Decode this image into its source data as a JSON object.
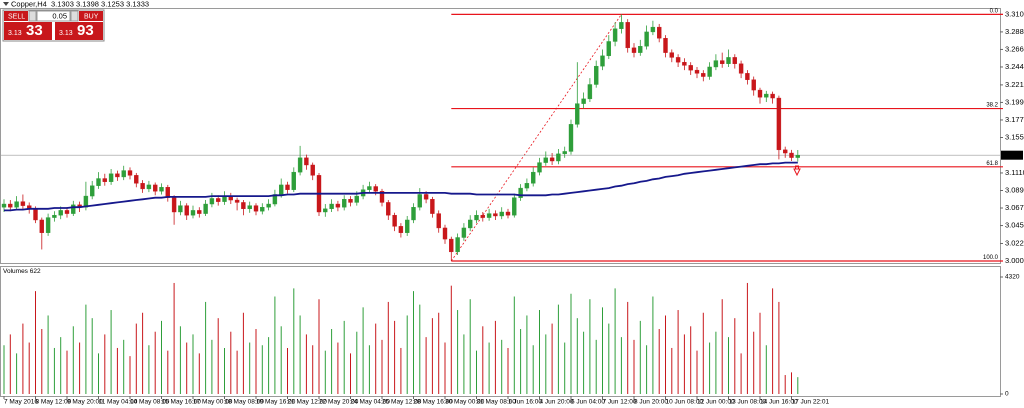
{
  "header": {
    "symbol": "Copper,H4",
    "open": 3.1303,
    "high": 3.1398,
    "low": 3.1253,
    "close": 3.1333
  },
  "trade_panel": {
    "sell_label": "SELL",
    "lot": "0.05",
    "buy_label": "BUY",
    "sell_prefix": "3.13",
    "sell_big": "33",
    "buy_prefix": "3.13",
    "buy_big": "93"
  },
  "chart_data": [
    {
      "type": "candlestick",
      "up_color": "#2e9e3a",
      "down_color": "#c8171b",
      "categories": [
        "7 May 2016",
        null,
        null,
        null,
        null,
        "8 May 12:00",
        null,
        null,
        null,
        null,
        "9 May 20:00",
        null,
        null,
        null,
        null,
        "11 May 04:00",
        null,
        null,
        null,
        null,
        "14 May 08:00",
        null,
        null,
        null,
        null,
        "15 May 16:00",
        null,
        null,
        null,
        null,
        "17 May 00:00",
        null,
        null,
        null,
        null,
        "18 May 08:00",
        null,
        null,
        null,
        null,
        "19 May 16:00",
        null,
        null,
        null,
        null,
        "21 May 12:00",
        null,
        null,
        null,
        null,
        "22 May 20:00",
        null,
        null,
        null,
        null,
        "24 May 04:00",
        null,
        null,
        null,
        null,
        "25 May 12:00",
        null,
        null,
        null,
        null,
        "28 May 16:00",
        null,
        null,
        null,
        null,
        "30 May 00:00",
        null,
        null,
        null,
        null,
        "31 May 08:00",
        null,
        null,
        null,
        null,
        "1 Jun 16:00",
        null,
        null,
        null,
        null,
        "4 Jun 20:00",
        null,
        null,
        null,
        null,
        "6 Jun 04:00",
        null,
        null,
        null,
        null,
        "7 Jun 12:00",
        null,
        null,
        null,
        null,
        "8 Jun 20:00",
        null,
        null,
        null,
        null,
        "10 Jun 08:00",
        null,
        null,
        null,
        null,
        "12 Jun 00:00",
        null,
        null,
        null,
        null,
        "13 Jun 08:00",
        null,
        null,
        null,
        null,
        "14 Jun 16:00",
        null,
        null,
        null,
        null,
        "17 Jun 22:01",
        null
      ],
      "open": [
        3.068,
        3.072,
        3.068,
        3.075,
        3.07,
        3.066,
        3.052,
        3.036,
        3.055,
        3.058,
        3.064,
        3.06,
        3.071,
        3.068,
        3.082,
        3.095,
        3.104,
        3.1,
        3.11,
        3.106,
        3.114,
        3.108,
        3.098,
        3.091,
        3.096,
        3.088,
        3.093,
        3.08,
        3.062,
        3.07,
        3.058,
        3.064,
        3.06,
        3.072,
        3.079,
        3.075,
        3.082,
        3.077,
        3.074,
        3.066,
        3.07,
        3.063,
        3.068,
        3.072,
        3.084,
        3.096,
        3.09,
        3.112,
        3.13,
        3.121,
        3.108,
        3.062,
        3.066,
        3.072,
        3.068,
        3.078,
        3.074,
        3.082,
        3.09,
        3.094,
        3.088,
        3.074,
        3.058,
        3.044,
        3.036,
        3.052,
        3.068,
        3.084,
        3.078,
        3.06,
        3.042,
        3.028,
        3.012,
        3.03,
        3.042,
        3.052,
        3.058,
        3.055,
        3.06,
        3.057,
        3.062,
        3.058,
        3.08,
        3.092,
        3.098,
        3.112,
        3.124,
        3.13,
        3.126,
        3.135,
        3.138,
        3.172,
        3.198,
        3.204,
        3.222,
        3.245,
        3.258,
        3.276,
        3.292,
        3.3,
        3.268,
        3.262,
        3.27,
        3.288,
        3.294,
        3.28,
        3.262,
        3.256,
        3.25,
        3.246,
        3.24,
        3.236,
        3.232,
        3.244,
        3.252,
        3.248,
        3.256,
        3.248,
        3.236,
        3.228,
        3.215,
        3.206,
        3.21,
        3.205,
        3.14,
        3.136,
        3.1303
      ],
      "high": [
        3.078,
        3.077,
        3.082,
        3.084,
        3.074,
        3.069,
        3.055,
        3.06,
        3.063,
        3.069,
        3.068,
        3.076,
        3.075,
        3.1,
        3.101,
        3.112,
        3.11,
        3.116,
        3.114,
        3.12,
        3.118,
        3.111,
        3.102,
        3.101,
        3.099,
        3.098,
        3.096,
        3.083,
        3.076,
        3.073,
        3.07,
        3.068,
        3.077,
        3.086,
        3.083,
        3.088,
        3.086,
        3.08,
        3.077,
        3.075,
        3.073,
        3.073,
        3.078,
        3.09,
        3.104,
        3.1,
        3.118,
        3.145,
        3.134,
        3.124,
        3.111,
        3.072,
        3.078,
        3.076,
        3.083,
        3.082,
        3.088,
        3.096,
        3.1,
        3.097,
        3.091,
        3.077,
        3.061,
        3.048,
        3.057,
        3.073,
        3.092,
        3.088,
        3.081,
        3.064,
        3.046,
        3.031,
        3.035,
        3.048,
        3.058,
        3.064,
        3.062,
        3.066,
        3.064,
        3.068,
        3.066,
        3.085,
        3.097,
        3.104,
        3.118,
        3.13,
        3.138,
        3.136,
        3.141,
        3.144,
        3.178,
        3.25,
        3.212,
        3.23,
        3.252,
        3.266,
        3.284,
        3.3,
        3.31,
        3.304,
        3.274,
        3.278,
        3.296,
        3.302,
        3.298,
        3.284,
        3.266,
        3.26,
        3.255,
        3.25,
        3.244,
        3.24,
        3.25,
        3.26,
        3.262,
        3.266,
        3.26,
        3.252,
        3.24,
        3.232,
        3.218,
        3.214,
        3.213,
        3.208,
        3.144,
        3.14,
        3.1398
      ],
      "low": [
        3.062,
        3.063,
        3.064,
        3.066,
        3.06,
        3.048,
        3.015,
        3.032,
        3.05,
        3.053,
        3.055,
        3.057,
        3.062,
        3.064,
        3.078,
        3.091,
        3.095,
        3.096,
        3.101,
        3.102,
        3.103,
        3.093,
        3.086,
        3.087,
        3.083,
        3.084,
        3.075,
        3.046,
        3.058,
        3.052,
        3.054,
        3.055,
        3.057,
        3.068,
        3.07,
        3.071,
        3.072,
        3.064,
        3.058,
        3.061,
        3.058,
        3.059,
        3.064,
        3.069,
        3.08,
        3.085,
        3.087,
        3.108,
        3.115,
        3.102,
        3.057,
        3.056,
        3.062,
        3.063,
        3.064,
        3.069,
        3.07,
        3.078,
        3.086,
        3.083,
        3.069,
        3.052,
        3.038,
        3.03,
        3.032,
        3.048,
        3.064,
        3.073,
        3.055,
        3.036,
        3.022,
        3.0005,
        3.008,
        3.026,
        3.038,
        3.048,
        3.05,
        3.051,
        3.052,
        3.053,
        3.054,
        3.055,
        3.076,
        3.088,
        3.094,
        3.108,
        3.12,
        3.121,
        3.122,
        3.13,
        3.134,
        3.168,
        3.192,
        3.2,
        3.218,
        3.24,
        3.254,
        3.27,
        3.286,
        3.262,
        3.256,
        3.258,
        3.266,
        3.284,
        3.275,
        3.256,
        3.25,
        3.244,
        3.24,
        3.234,
        3.23,
        3.226,
        3.228,
        3.24,
        3.243,
        3.244,
        3.242,
        3.23,
        3.222,
        3.208,
        3.198,
        3.2,
        3.198,
        3.128,
        3.13,
        3.126,
        3.1253
      ],
      "close": [
        3.072,
        3.068,
        3.075,
        3.07,
        3.066,
        3.052,
        3.036,
        3.055,
        3.058,
        3.064,
        3.06,
        3.071,
        3.068,
        3.082,
        3.095,
        3.104,
        3.1,
        3.11,
        3.106,
        3.114,
        3.108,
        3.098,
        3.091,
        3.096,
        3.088,
        3.093,
        3.08,
        3.062,
        3.07,
        3.058,
        3.064,
        3.06,
        3.072,
        3.079,
        3.075,
        3.082,
        3.077,
        3.074,
        3.066,
        3.07,
        3.063,
        3.068,
        3.072,
        3.084,
        3.096,
        3.09,
        3.112,
        3.13,
        3.121,
        3.108,
        3.062,
        3.066,
        3.072,
        3.068,
        3.078,
        3.074,
        3.082,
        3.09,
        3.094,
        3.088,
        3.074,
        3.058,
        3.044,
        3.036,
        3.052,
        3.068,
        3.084,
        3.078,
        3.06,
        3.042,
        3.028,
        3.012,
        3.03,
        3.042,
        3.052,
        3.058,
        3.055,
        3.06,
        3.057,
        3.062,
        3.058,
        3.08,
        3.092,
        3.098,
        3.112,
        3.124,
        3.13,
        3.126,
        3.135,
        3.138,
        3.172,
        3.198,
        3.204,
        3.222,
        3.245,
        3.258,
        3.276,
        3.292,
        3.3,
        3.268,
        3.262,
        3.27,
        3.288,
        3.294,
        3.28,
        3.262,
        3.256,
        3.25,
        3.246,
        3.24,
        3.236,
        3.232,
        3.244,
        3.252,
        3.248,
        3.256,
        3.248,
        3.236,
        3.228,
        3.215,
        3.206,
        3.21,
        3.205,
        3.14,
        3.136,
        3.1303,
        3.1333
      ],
      "ma": {
        "color": "#16188c",
        "values": [
          3.064,
          3.064,
          3.065,
          3.065,
          3.066,
          3.066,
          3.066,
          3.066,
          3.067,
          3.067,
          3.067,
          3.068,
          3.068,
          3.069,
          3.07,
          3.071,
          3.072,
          3.073,
          3.074,
          3.075,
          3.076,
          3.077,
          3.078,
          3.079,
          3.08,
          3.08,
          3.081,
          3.081,
          3.081,
          3.081,
          3.081,
          3.081,
          3.081,
          3.082,
          3.082,
          3.082,
          3.082,
          3.082,
          3.082,
          3.082,
          3.082,
          3.082,
          3.082,
          3.083,
          3.083,
          3.084,
          3.084,
          3.085,
          3.085,
          3.085,
          3.085,
          3.085,
          3.085,
          3.085,
          3.085,
          3.085,
          3.085,
          3.086,
          3.086,
          3.086,
          3.086,
          3.086,
          3.086,
          3.086,
          3.086,
          3.086,
          3.086,
          3.086,
          3.086,
          3.086,
          3.086,
          3.085,
          3.085,
          3.085,
          3.085,
          3.084,
          3.084,
          3.084,
          3.084,
          3.084,
          3.084,
          3.084,
          3.083,
          3.083,
          3.083,
          3.083,
          3.083,
          3.084,
          3.084,
          3.085,
          3.086,
          3.087,
          3.088,
          3.089,
          3.09,
          3.091,
          3.092,
          3.094,
          3.095,
          3.097,
          3.098,
          3.1,
          3.101,
          3.103,
          3.104,
          3.106,
          3.107,
          3.108,
          3.11,
          3.111,
          3.112,
          3.113,
          3.114,
          3.115,
          3.116,
          3.117,
          3.118,
          3.119,
          3.12,
          3.121,
          3.122,
          3.122,
          3.123,
          3.123,
          3.124,
          3.124,
          3.124
        ]
      },
      "fib": {
        "color": "#e8141c",
        "levels": [
          {
            "label": "0.0",
            "value": 3.31
          },
          {
            "label": "38.2",
            "value": 3.1918
          },
          {
            "label": "61.8",
            "value": 3.1187
          },
          {
            "label": "100.0",
            "value": 3.0005
          }
        ]
      },
      "last_price": 3.1333,
      "ylim": [
        2.998,
        3.318
      ],
      "yticks": [
        {
          "value": 3.31,
          "label": "3.3100"
        },
        {
          "value": 3.288,
          "label": "3.2880"
        },
        {
          "value": 3.266,
          "label": "3.2660"
        },
        {
          "value": 3.244,
          "label": "3.2440"
        },
        {
          "value": 3.2215,
          "label": "3.2215"
        },
        {
          "value": 3.1995,
          "label": "3.1995"
        },
        {
          "value": 3.1775,
          "label": "3.1775"
        },
        {
          "value": 3.1555,
          "label": "3.1555"
        },
        {
          "value": 3.111,
          "label": "3.1110"
        },
        {
          "value": 3.089,
          "label": "3.0890"
        },
        {
          "value": 3.067,
          "label": "3.0670"
        },
        {
          "value": 3.045,
          "label": "3.0450"
        },
        {
          "value": 3.0225,
          "label": "3.0225"
        },
        {
          "value": 3.0005,
          "label": "3.0005"
        }
      ],
      "grid": false
    },
    {
      "type": "bar",
      "title": "Volumes 622",
      "values": [
        1800,
        2200,
        1500,
        2600,
        1900,
        3800,
        2400,
        2900,
        1700,
        2100,
        1600,
        2500,
        1900,
        3300,
        2800,
        1500,
        2200,
        3100,
        1700,
        2000,
        1400,
        2600,
        3000,
        1800,
        2300,
        2700,
        1600,
        4100,
        2500,
        1900,
        2200,
        1500,
        3400,
        2000,
        2800,
        1700,
        2300,
        1600,
        3000,
        1900,
        2400,
        1800,
        2100,
        3600,
        2500,
        1700,
        3900,
        2900,
        2200,
        1800,
        3500,
        1600,
        2400,
        1900,
        2700,
        1500,
        2300,
        3200,
        1800,
        2600,
        2000,
        3400,
        2700,
        1700,
        2900,
        3800,
        3300,
        2100,
        2800,
        3000,
        1900,
        4000,
        3100,
        2200,
        3500,
        1600,
        2500,
        1900,
        2700,
        2000,
        1700,
        3600,
        2400,
        2900,
        1800,
        3100,
        2200,
        2600,
        3300,
        1900,
        3700,
        2800,
        2300,
        3500,
        2000,
        3200,
        2600,
        3900,
        2100,
        3400,
        2000,
        2700,
        1800,
        3600,
        2400,
        2900,
        1700,
        3100,
        2200,
        2500,
        1600,
        3000,
        1900,
        2300,
        3500,
        2100,
        2800,
        1500,
        4100,
        2300,
        3000,
        1800,
        3900,
        3400,
        700,
        800,
        622
      ],
      "ylim": [
        0,
        4320
      ],
      "yticks": [
        0,
        4320
      ]
    }
  ]
}
